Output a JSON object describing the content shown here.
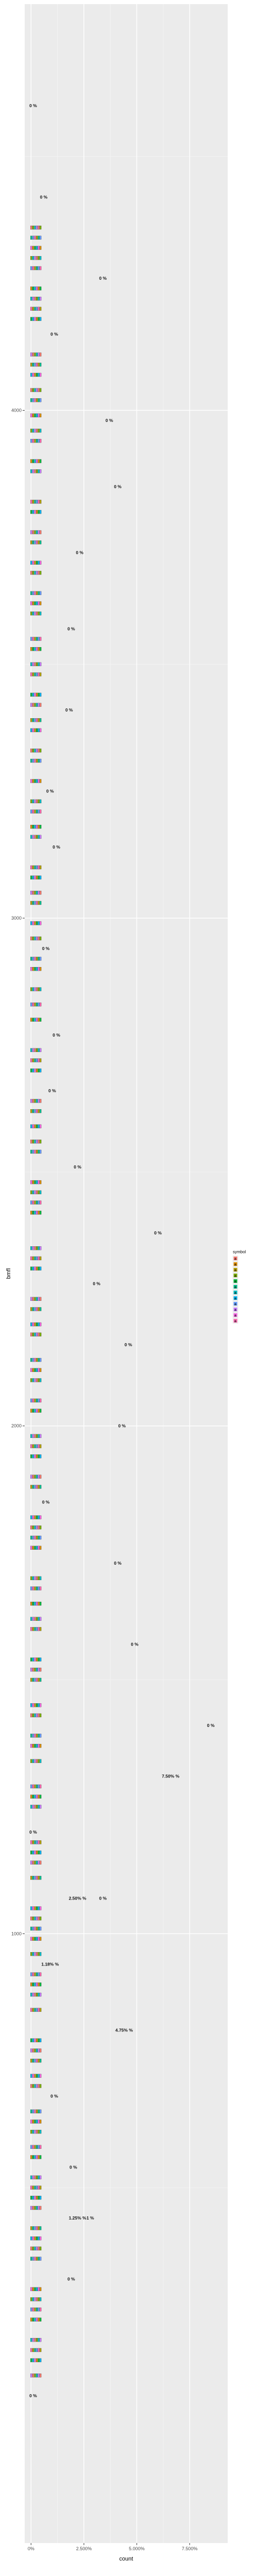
{
  "chart_data": {
    "type": "scatter",
    "xlabel": "count",
    "ylabel": "bmfl",
    "x_ticks": [
      {
        "value": 0,
        "label": "0%"
      },
      {
        "value": 0.025,
        "label": "2.500%"
      },
      {
        "value": 0.05,
        "label": "5.000%"
      },
      {
        "value": 0.075,
        "label": "7.500%"
      }
    ],
    "y_ticks": [
      {
        "value": 4000,
        "label": "4000"
      },
      {
        "value": 3000,
        "label": "3000"
      },
      {
        "value": 2000,
        "label": "2000"
      },
      {
        "value": 1000,
        "label": "1000"
      }
    ],
    "xlim": [
      -0.003,
      0.093
    ],
    "ylim": [
      -200,
      4800
    ],
    "legend": {
      "title": "symbol",
      "position": "right",
      "entries": [
        {
          "key": "a",
          "color": "#F8766D"
        },
        {
          "key": "a",
          "color": "#DE8C00"
        },
        {
          "key": "a",
          "color": "#B79F00"
        },
        {
          "key": "a",
          "color": "#7CAE00"
        },
        {
          "key": "a",
          "color": "#00BA38"
        },
        {
          "key": "a",
          "color": "#00C08B"
        },
        {
          "key": "a",
          "color": "#00BFC4"
        },
        {
          "key": "a",
          "color": "#00B4F0"
        },
        {
          "key": "a",
          "color": "#619CFF"
        },
        {
          "key": "a",
          "color": "#C77CFF"
        },
        {
          "key": "a",
          "color": "#F564E3"
        },
        {
          "key": "a",
          "color": "#FF64B0"
        }
      ]
    },
    "points": [
      {
        "x": 0.001,
        "y": 4600,
        "label": "0 %"
      },
      {
        "x": 0.006,
        "y": 4420,
        "label": "0 %"
      },
      {
        "x": 0.034,
        "y": 4260,
        "label": "0 %"
      },
      {
        "x": 0.011,
        "y": 4150,
        "label": "0 %"
      },
      {
        "x": 0.037,
        "y": 3980,
        "label": "0 %"
      },
      {
        "x": 0.041,
        "y": 3850,
        "label": "0 %"
      },
      {
        "x": 0.023,
        "y": 3720,
        "label": "0 %"
      },
      {
        "x": 0.019,
        "y": 3570,
        "label": "0 %"
      },
      {
        "x": 0.018,
        "y": 3410,
        "label": "0 %"
      },
      {
        "x": 0.009,
        "y": 3250,
        "label": "0 %"
      },
      {
        "x": 0.012,
        "y": 3140,
        "label": "0 %"
      },
      {
        "x": 0.007,
        "y": 2940,
        "label": "0 %"
      },
      {
        "x": 0.012,
        "y": 2770,
        "label": "0 %"
      },
      {
        "x": 0.01,
        "y": 2660,
        "label": "0 %"
      },
      {
        "x": 0.022,
        "y": 2510,
        "label": "0 %"
      },
      {
        "x": 0.06,
        "y": 2380,
        "label": "0 %"
      },
      {
        "x": 0.031,
        "y": 2280,
        "label": "0 %"
      },
      {
        "x": 0.046,
        "y": 2160,
        "label": "0 %"
      },
      {
        "x": 0.043,
        "y": 2000,
        "label": "0 %"
      },
      {
        "x": 0.007,
        "y": 1850,
        "label": "0 %"
      },
      {
        "x": 0.041,
        "y": 1730,
        "label": "0 %"
      },
      {
        "x": 0.049,
        "y": 1570,
        "label": "0 %"
      },
      {
        "x": 0.085,
        "y": 1410,
        "label": "0 %"
      },
      {
        "x": 0.066,
        "y": 1310,
        "label": "7.50% %"
      },
      {
        "x": 0.001,
        "y": 1200,
        "label": "0 %"
      },
      {
        "x": 0.022,
        "y": 1070,
        "label": "2.50% %"
      },
      {
        "x": 0.034,
        "y": 1070,
        "label": "0 %"
      },
      {
        "x": 0.009,
        "y": 940,
        "label": "1.18% %"
      },
      {
        "x": 0.044,
        "y": 810,
        "label": "4.75% %"
      },
      {
        "x": 0.011,
        "y": 680,
        "label": "0 %"
      },
      {
        "x": 0.02,
        "y": 540,
        "label": "0 %"
      },
      {
        "x": 0.022,
        "y": 440,
        "label": "1.25% %"
      },
      {
        "x": 0.028,
        "y": 440,
        "label": "1 %"
      },
      {
        "x": 0.019,
        "y": 320,
        "label": "0 %"
      },
      {
        "x": 0.001,
        "y": 90,
        "label": "0 %"
      }
    ],
    "mini_glyph_rows": [
      4360,
      4340,
      4320,
      4300,
      4280,
      4240,
      4220,
      4200,
      4180,
      4110,
      4090,
      4070,
      4040,
      4020,
      3990,
      3960,
      3940,
      3900,
      3880,
      3820,
      3800,
      3760,
      3740,
      3700,
      3680,
      3640,
      3620,
      3600,
      3550,
      3530,
      3500,
      3480,
      3440,
      3420,
      3390,
      3370,
      3330,
      3310,
      3270,
      3230,
      3210,
      3180,
      3160,
      3100,
      3080,
      3050,
      3030,
      2990,
      2960,
      2920,
      2900,
      2860,
      2830,
      2800,
      2740,
      2720,
      2700,
      2640,
      2620,
      2590,
      2560,
      2540,
      2480,
      2460,
      2440,
      2420,
      2350,
      2330,
      2310,
      2250,
      2230,
      2200,
      2180,
      2130,
      2110,
      2090,
      2050,
      2030,
      1980,
      1960,
      1940,
      1900,
      1880,
      1820,
      1800,
      1780,
      1760,
      1700,
      1680,
      1650,
      1620,
      1600,
      1540,
      1520,
      1500,
      1450,
      1430,
      1390,
      1370,
      1340,
      1290,
      1270,
      1250,
      1180,
      1160,
      1140,
      1110,
      1050,
      1030,
      1010,
      990,
      960,
      920,
      900,
      880,
      850,
      790,
      770,
      750,
      720,
      700,
      650,
      630,
      610,
      580,
      560,
      520,
      500,
      480,
      460,
      420,
      400,
      380,
      360,
      300,
      280,
      260,
      240,
      200,
      180,
      160,
      130
    ]
  }
}
